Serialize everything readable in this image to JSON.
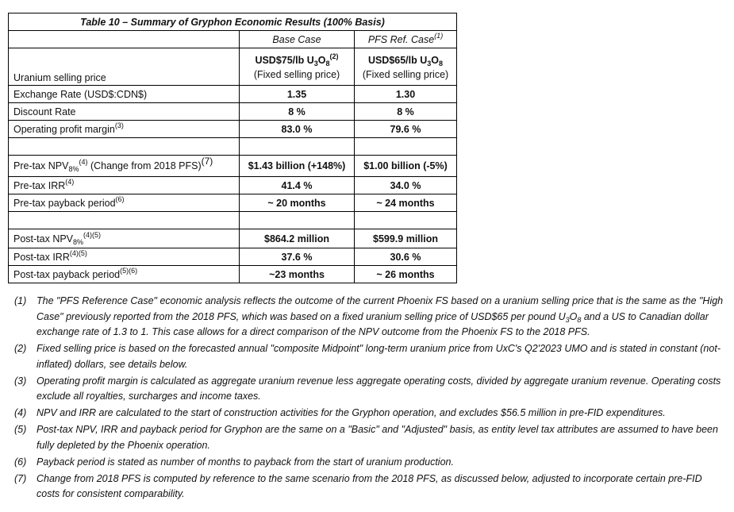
{
  "title": "Table 10 – Summary of Gryphon Economic Results (100% Basis)",
  "headers": {
    "base": "Base Case",
    "pfs": "PFS Ref. Case",
    "pfs_sup": "(1)"
  },
  "uranium": {
    "label": "Uranium selling price",
    "base_a": "USD$75/lb U",
    "base_sub1": "3",
    "base_b": "O",
    "base_sub2": "8",
    "base_sup": "(2)",
    "base_note": "(Fixed selling price)",
    "pfs_a": "USD$65/lb U",
    "pfs_sub1": "3",
    "pfs_b": "O",
    "pfs_sub2": "8",
    "pfs_note": "(Fixed selling price)"
  },
  "rows": [
    {
      "label": "Exchange Rate (USD$:CDN$)",
      "base": "1.35",
      "pfs": "1.30"
    },
    {
      "label": "Discount Rate",
      "base": "8 %",
      "pfs": "8 %"
    },
    {
      "label": "Operating profit margin",
      "sup": "(3)",
      "base": "83.0 %",
      "pfs": "79.6 %"
    },
    {
      "label": "Pre-tax NPV",
      "sub": "8%",
      "sup": "(4)",
      "tail": " (Change from 2018 PFS)",
      "tail_sup": "(7)",
      "base": "$1.43 billion (+148%)",
      "pfs": "$1.00 billion (-5%)"
    },
    {
      "label": "Pre-tax IRR",
      "sup": "(4)",
      "base": "41.4 %",
      "pfs": "34.0 %"
    },
    {
      "label": "Pre-tax payback period",
      "sup": "(6)",
      "base": "~ 20 months",
      "pfs": "~ 24 months"
    },
    {
      "label": "Post-tax NPV",
      "sub": "8%",
      "sup": "(4)(5)",
      "base": "$864.2 million",
      "pfs": "$599.9 million"
    },
    {
      "label": "Post-tax IRR",
      "sup": "(4)(5)",
      "base": "37.6 %",
      "pfs": "30.6 %"
    },
    {
      "label": "Post-tax payback period",
      "sup": "(5)(6)",
      "base": "~23 months",
      "pfs": "~ 26 months"
    }
  ],
  "notes": [
    {
      "n": "(1)",
      "a": "The \"PFS Reference Case\" economic analysis reflects the outcome of the current Phoenix FS based on a uranium selling price that is the same as the \"High Case\" previously reported from the 2018 PFS, which was based on a fixed uranium selling price of USD$65 per pound U",
      "s1": "3",
      "b": "O",
      "s2": "8",
      "c": " and a US to Canadian dollar exchange rate of 1.3 to 1. This case allows for a direct comparison of the NPV outcome from the Phoenix FS to the 2018 PFS."
    },
    {
      "n": "(2)",
      "a": "Fixed selling price is based on the forecasted annual \"composite Midpoint\" long-term uranium price from UxC's Q2'2023 UMO and is stated in constant (not-inflated) dollars, see details below."
    },
    {
      "n": "(3)",
      "a": "Operating profit margin is calculated as aggregate uranium revenue less aggregate operating costs, divided by aggregate uranium revenue. Operating costs exclude all royalties, surcharges and income taxes."
    },
    {
      "n": "(4)",
      "a": "NPV and IRR are calculated to the start of construction activities for the Gryphon operation, and excludes $56.5 million in pre-FID expenditures."
    },
    {
      "n": "(5)",
      "a": "Post-tax NPV, IRR and payback period for Gryphon are the same on a \"Basic\" and \"Adjusted\" basis, as entity level tax attributes are assumed to have been fully depleted by the Phoenix operation."
    },
    {
      "n": "(6)",
      "a": "Payback period is stated as number of months to payback from the start of uranium production."
    },
    {
      "n": "(7)",
      "a": "Change from 2018 PFS is computed by reference to the same scenario from the 2018 PFS, as discussed below, adjusted to incorporate certain pre-FID costs for consistent comparability."
    }
  ]
}
